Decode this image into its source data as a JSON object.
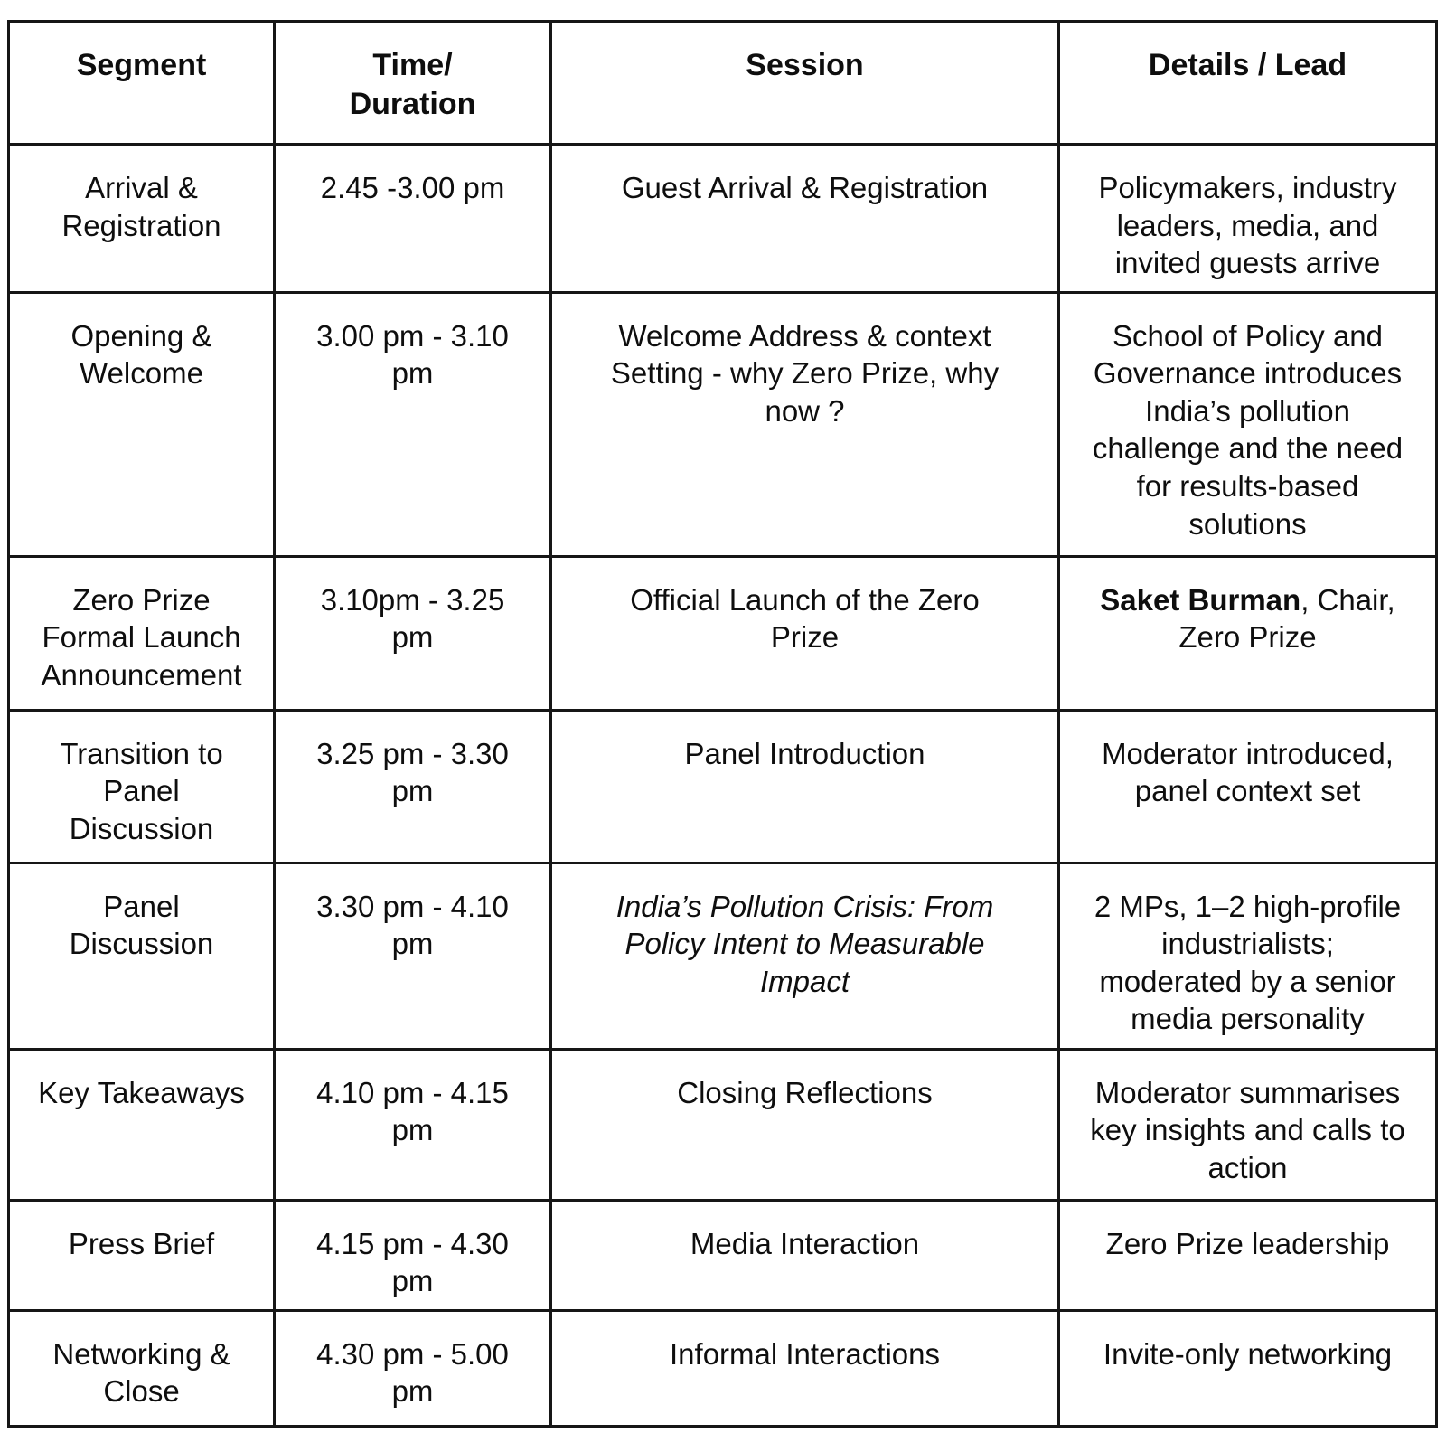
{
  "table": {
    "headers": [
      "Segment",
      "Time/\nDuration",
      "Session",
      "Details / Lead"
    ],
    "rows": [
      {
        "segment": "Arrival &\nRegistration",
        "time": "2.45 -3.00 pm",
        "session": "Guest Arrival & Registration",
        "session_italic": false,
        "details_bold_lead": "",
        "details": "Policymakers, industry\nleaders, media, and\ninvited guests arrive"
      },
      {
        "segment": "Opening &\nWelcome",
        "time": "3.00 pm - 3.10\npm",
        "session": "Welcome Address & context\nSetting - why Zero Prize, why\nnow ?",
        "session_italic": false,
        "details_bold_lead": "",
        "details": "School of Policy and\nGovernance introduces\nIndia’s pollution\nchallenge and the need\nfor results-based\nsolutions"
      },
      {
        "segment": "Zero Prize\nFormal Launch\nAnnouncement",
        "time": "3.10pm - 3.25\npm",
        "session": "Official Launch of the Zero\nPrize",
        "session_italic": false,
        "details_bold_lead": "Saket Burman",
        "details": ", Chair,\nZero Prize"
      },
      {
        "segment": "Transition to\nPanel\nDiscussion",
        "time": "3.25 pm - 3.30\npm",
        "session": "Panel Introduction",
        "session_italic": false,
        "details_bold_lead": "",
        "details": "Moderator introduced,\npanel context set"
      },
      {
        "segment": "Panel\nDiscussion",
        "time": "3.30 pm - 4.10\npm",
        "session": "India’s Pollution Crisis: From\nPolicy Intent to Measurable\nImpact",
        "session_italic": true,
        "details_bold_lead": "",
        "details": "2 MPs, 1–2 high-profile\nindustrialists;\nmoderated by a senior\nmedia personality"
      },
      {
        "segment": "Key Takeaways",
        "time": "4.10 pm - 4.15\npm",
        "session": "Closing Reflections",
        "session_italic": false,
        "details_bold_lead": "",
        "details": "Moderator summarises\nkey insights and calls to\naction"
      },
      {
        "segment": "Press Brief",
        "time": "4.15 pm - 4.30\npm",
        "session": "Media Interaction",
        "session_italic": false,
        "details_bold_lead": "",
        "details": "Zero Prize leadership"
      },
      {
        "segment": "Networking &\nClose",
        "time": "4.30 pm - 5.00\npm",
        "session": "Informal Interactions",
        "session_italic": false,
        "details_bold_lead": "",
        "details": "Invite-only networking"
      }
    ]
  }
}
